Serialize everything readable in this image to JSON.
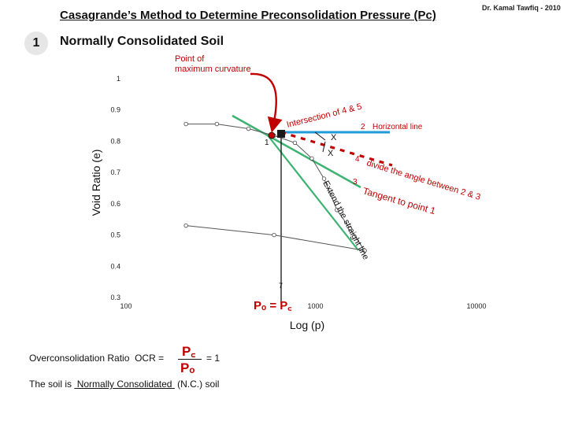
{
  "header": {
    "title": "Casagrande’s Method to Determine Preconsolidation Pressure (Pc)",
    "author": "Dr. Kamal Tawfiq - 2010",
    "step_number": "1",
    "subtitle": "Normally Consolidated Soil"
  },
  "chart_data": {
    "type": "line",
    "ylabel": "Void Ratio (e)",
    "xlabel": "Log (p)",
    "x_scale": "log",
    "y_ticks": [
      "1",
      "0.9",
      "0.8",
      "0.7",
      "0.6",
      "0.5",
      "0.4",
      "0.3"
    ],
    "x_ticks": [
      "100",
      "1000",
      "10000"
    ],
    "ylim": [
      0.3,
      1.0
    ],
    "xlim": [
      100,
      10000
    ],
    "series": [
      {
        "values": [
          {
            "x": 220,
            "e": 0.855
          },
          {
            "x": 330,
            "e": 0.855
          },
          {
            "x": 500,
            "e": 0.84
          },
          {
            "x": 700,
            "e": 0.818
          },
          {
            "x": 920,
            "e": 0.795
          },
          {
            "x": 1150,
            "e": 0.745
          },
          {
            "x": 1350,
            "e": 0.68
          },
          {
            "x": 1600,
            "e": 0.58
          },
          {
            "x": 1900,
            "e": 0.52
          },
          {
            "x": 2300,
            "e": 0.45
          }
        ]
      },
      {
        "values": [
          {
            "x": 220,
            "e": 0.53
          },
          {
            "x": 700,
            "e": 0.5
          },
          {
            "x": 2300,
            "e": 0.45
          }
        ]
      }
    ],
    "annotations": {
      "point_max_curvature": "Point of maximum curvature",
      "tangent_label": "Tangent to point 1",
      "tangent_num": "3",
      "horizontal_label": "Horizontal line",
      "horizontal_num": "2",
      "bisector_label": "divide the angle between 2 & 3",
      "bisector_num": "4",
      "extend_label": "Extend the straight line",
      "intersection_label": "Intersection of 4 & 5",
      "intersection_num": "6",
      "point1_label": "1",
      "angle_mark_1": "X",
      "angle_mark_2": "X",
      "vertical_num": "7",
      "pc_label": "Pₒ = P꜀"
    },
    "colors": {
      "curve": "#555555",
      "tangent": "#3cb371",
      "horizontal": "#1e9bd7",
      "bisector": "#c00000",
      "annotation_red": "#c00000",
      "intersection": "#1a1a1a"
    }
  },
  "equation": {
    "label": "Overconsolidation Ratio",
    "ocr": "OCR =",
    "numerator": "P꜀",
    "denominator": "Pₒ",
    "result": "= 1",
    "conclusion_prefix": "The soil is",
    "conclusion_value": "Normally Consolidated",
    "conclusion_suffix": "(N.C.) soil"
  }
}
